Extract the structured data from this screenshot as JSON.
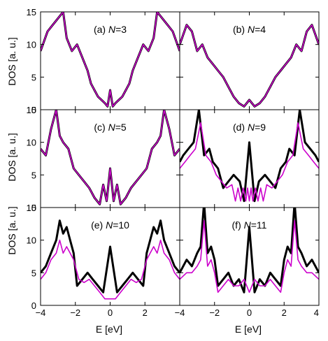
{
  "chart_data": {
    "type": "line",
    "xlabel": "E [eV]",
    "ylabel": "DOS [a. u.]",
    "xlim": [
      -4,
      4
    ],
    "ylim": [
      0,
      15
    ],
    "x_ticks": [
      "−4",
      "−2",
      "0",
      "2",
      "4"
    ],
    "y_ticks": [
      "0",
      "5",
      "10",
      "15"
    ],
    "colors": {
      "black": "#000000",
      "magenta": "#cc00cc"
    },
    "panels": [
      {
        "id": "a",
        "tag": "(a)",
        "label": "N=3",
        "grid_col": 0,
        "grid_row": 0,
        "overlap": true,
        "sym_black": false,
        "sym_magenta": false
      },
      {
        "id": "b",
        "tag": "(b)",
        "label": "N=4",
        "grid_col": 1,
        "grid_row": 0,
        "overlap": true,
        "sym_black": false,
        "sym_magenta": false
      },
      {
        "id": "c",
        "tag": "(c)",
        "label": "N=5",
        "grid_col": 0,
        "grid_row": 1,
        "overlap": true,
        "sym_black": false,
        "sym_magenta": false
      },
      {
        "id": "d",
        "tag": "(d)",
        "label": "N=9",
        "grid_col": 1,
        "grid_row": 1,
        "overlap": false,
        "sym_black": true,
        "sym_magenta": true
      },
      {
        "id": "e",
        "tag": "(e)",
        "label": "N=10",
        "grid_col": 0,
        "grid_row": 2,
        "overlap": false,
        "sym_black": true,
        "sym_magenta": true
      },
      {
        "id": "f",
        "tag": "(f)",
        "label": "N=11",
        "grid_col": 1,
        "grid_row": 2,
        "overlap": false,
        "sym_black": true,
        "sym_magenta": true
      }
    ],
    "series": [
      {
        "panel": "a",
        "color": "black",
        "x": [
          -4,
          -3.6,
          -3.3,
          -3.0,
          -2.7,
          -2.5,
          -2.2,
          -1.9,
          -1.6,
          -1.3,
          -1.1,
          -0.9,
          -0.7,
          -0.5,
          -0.3,
          -0.15,
          0,
          0.15,
          0.3,
          0.5,
          0.7,
          0.9,
          1.1,
          1.3,
          1.6,
          1.9,
          2.2,
          2.5,
          2.7,
          3.0,
          3.3,
          3.6,
          4
        ],
        "y": [
          9,
          12,
          13,
          14,
          15,
          11,
          9,
          10,
          8,
          6,
          4,
          3,
          2,
          1.5,
          1,
          0.5,
          3,
          0.5,
          1,
          1.5,
          2,
          3,
          4,
          6,
          8,
          10,
          9,
          11,
          15,
          14,
          13,
          12,
          9
        ]
      },
      {
        "panel": "a",
        "color": "magenta",
        "x": [
          -4,
          -3.6,
          -3.3,
          -3.0,
          -2.7,
          -2.5,
          -2.2,
          -1.9,
          -1.6,
          -1.3,
          -1.1,
          -0.9,
          -0.7,
          -0.5,
          -0.3,
          -0.15,
          0,
          0.15,
          0.3,
          0.5,
          0.7,
          0.9,
          1.1,
          1.3,
          1.6,
          1.9,
          2.2,
          2.5,
          2.7,
          3.0,
          3.3,
          3.6,
          4
        ],
        "y": [
          9,
          12,
          13,
          14,
          15,
          11,
          9,
          10,
          8,
          6,
          4,
          3,
          2,
          1.5,
          1,
          0.5,
          3,
          0.5,
          1,
          1.5,
          2,
          3,
          4,
          6,
          8,
          10,
          9,
          11,
          15,
          14,
          13,
          12,
          9
        ]
      },
      {
        "panel": "b",
        "color": "black",
        "x": [
          -4,
          -3.6,
          -3.3,
          -3.0,
          -2.7,
          -2.4,
          -2.1,
          -1.8,
          -1.5,
          -1.2,
          -0.9,
          -0.6,
          -0.3,
          0,
          0.3,
          0.6,
          0.9,
          1.2,
          1.5,
          1.8,
          2.1,
          2.4,
          2.7,
          3.0,
          3.3,
          3.6,
          4
        ],
        "y": [
          10,
          13,
          12,
          9,
          10,
          8,
          7,
          6,
          5,
          3.5,
          2,
          1,
          0.5,
          1.5,
          0.5,
          1,
          2,
          3.5,
          5,
          6,
          7,
          8,
          10,
          9,
          12,
          13,
          10
        ]
      },
      {
        "panel": "b",
        "color": "magenta",
        "x": [
          -4,
          -3.6,
          -3.3,
          -3.0,
          -2.7,
          -2.4,
          -2.1,
          -1.8,
          -1.5,
          -1.2,
          -0.9,
          -0.6,
          -0.3,
          0,
          0.3,
          0.6,
          0.9,
          1.2,
          1.5,
          1.8,
          2.1,
          2.4,
          2.7,
          3.0,
          3.3,
          3.6,
          4
        ],
        "y": [
          10,
          13,
          12,
          9,
          10,
          8,
          7,
          6,
          5,
          3.5,
          2,
          1,
          0.5,
          1.5,
          0.5,
          1,
          2,
          3.5,
          5,
          6,
          7,
          8,
          10,
          9,
          12,
          13,
          10
        ]
      },
      {
        "panel": "c",
        "color": "black",
        "x": [
          -4,
          -3.7,
          -3.4,
          -3.1,
          -2.9,
          -2.7,
          -2.4,
          -2.1,
          -1.8,
          -1.5,
          -1.2,
          -0.9,
          -0.6,
          -0.4,
          -0.2,
          0,
          0.2,
          0.4,
          0.6,
          0.9,
          1.2,
          1.5,
          1.8,
          2.1,
          2.4,
          2.7,
          2.9,
          3.1,
          3.4,
          3.7,
          4
        ],
        "y": [
          9,
          8,
          12,
          15,
          11,
          10,
          9,
          6,
          5,
          4,
          3,
          1.5,
          0.5,
          3.5,
          1,
          6,
          1,
          3.5,
          0.5,
          1.5,
          3,
          4,
          5,
          6,
          9,
          10,
          11,
          15,
          12,
          8,
          9
        ]
      },
      {
        "panel": "c",
        "color": "magenta",
        "x": [
          -4,
          -3.7,
          -3.4,
          -3.1,
          -2.9,
          -2.7,
          -2.4,
          -2.1,
          -1.8,
          -1.5,
          -1.2,
          -0.9,
          -0.6,
          -0.4,
          -0.2,
          0,
          0.2,
          0.4,
          0.6,
          0.9,
          1.2,
          1.5,
          1.8,
          2.1,
          2.4,
          2.7,
          2.9,
          3.1,
          3.4,
          3.7,
          4
        ],
        "y": [
          9,
          8,
          12,
          15,
          11,
          10,
          9,
          6,
          5,
          4,
          3,
          1.5,
          0.5,
          3.5,
          1,
          6,
          1,
          3.5,
          0.5,
          1.5,
          3,
          4,
          5,
          6,
          9,
          10,
          11,
          15,
          12,
          8,
          9
        ]
      },
      {
        "panel": "d",
        "color": "black",
        "x": [
          0,
          0.3,
          0.55,
          0.9,
          1.2,
          1.5,
          1.8,
          2.1,
          2.3,
          2.6,
          2.9,
          3.2,
          3.5,
          3.8,
          4
        ],
        "y": [
          10,
          1,
          4,
          5,
          4,
          3,
          6,
          7,
          9,
          8,
          15,
          10,
          9,
          8,
          7
        ]
      },
      {
        "panel": "d",
        "color": "magenta",
        "x": [
          0,
          0.1,
          0.2,
          0.35,
          0.5,
          0.65,
          0.8,
          1.0,
          1.3,
          1.6,
          1.9,
          2.2,
          2.5,
          2.8,
          3.1,
          3.4,
          3.7,
          4
        ],
        "y": [
          1,
          3,
          1,
          3,
          1,
          3,
          1,
          3.5,
          3,
          4,
          5,
          7,
          8,
          13,
          9,
          8,
          7,
          6
        ]
      },
      {
        "panel": "e",
        "color": "black",
        "x": [
          0,
          0.4,
          0.7,
          1.0,
          1.3,
          1.6,
          1.9,
          2.1,
          2.3,
          2.5,
          2.7,
          2.9,
          3.1,
          3.4,
          3.7,
          4
        ],
        "y": [
          9,
          2,
          3,
          4,
          5,
          4,
          3,
          8,
          10,
          12,
          11,
          13,
          10,
          8,
          6,
          5
        ]
      },
      {
        "panel": "e",
        "color": "magenta",
        "x": [
          0,
          0.3,
          0.6,
          0.9,
          1.2,
          1.5,
          1.8,
          2.1,
          2.3,
          2.5,
          2.7,
          2.9,
          3.1,
          3.4,
          3.7,
          4
        ],
        "y": [
          1,
          1,
          2,
          3,
          4,
          3.5,
          4,
          7,
          8,
          9,
          8,
          10,
          8,
          7,
          5,
          4
        ]
      },
      {
        "panel": "f",
        "color": "black",
        "x": [
          0,
          0.3,
          0.6,
          0.9,
          1.2,
          1.5,
          1.8,
          2.0,
          2.2,
          2.4,
          2.6,
          2.8,
          3.0,
          3.3,
          3.6,
          4
        ],
        "y": [
          12,
          2,
          4,
          3,
          5,
          4,
          3,
          7,
          9,
          8,
          16,
          9,
          8,
          6,
          7,
          5
        ]
      },
      {
        "panel": "f",
        "color": "magenta",
        "x": [
          0,
          0.3,
          0.6,
          0.9,
          1.2,
          1.5,
          1.8,
          2.0,
          2.2,
          2.4,
          2.6,
          2.8,
          3.0,
          3.3,
          3.6,
          4
        ],
        "y": [
          2,
          4,
          3,
          3,
          4,
          3,
          2,
          5,
          7,
          6,
          13,
          7,
          6,
          5,
          5,
          4
        ]
      }
    ]
  }
}
